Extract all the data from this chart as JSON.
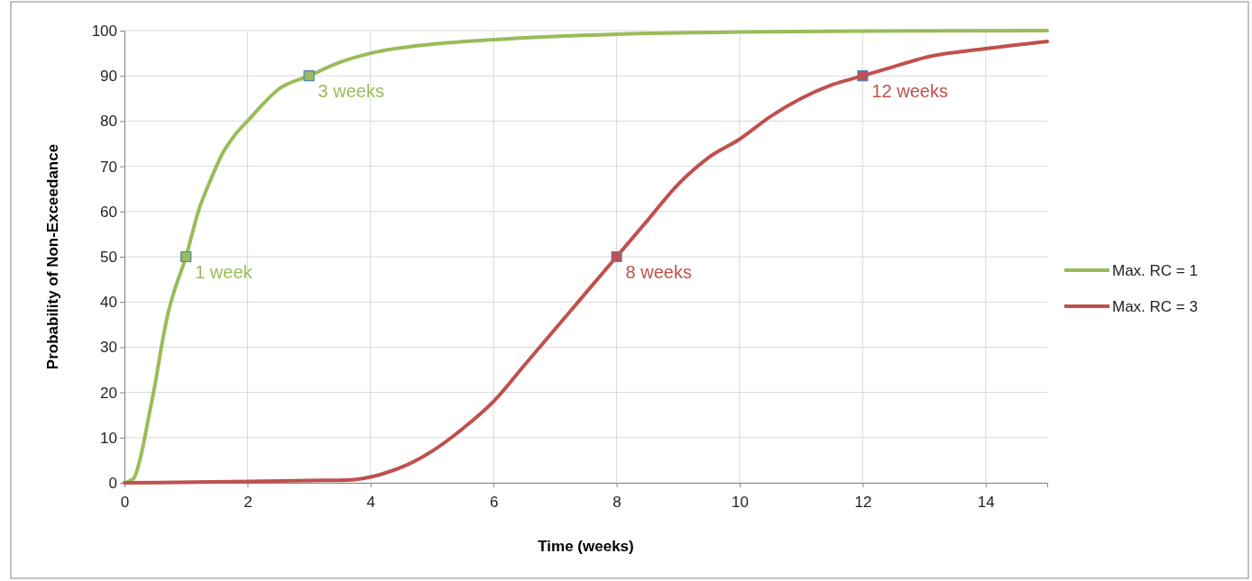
{
  "chart_data": {
    "type": "line",
    "xlabel": "Time (weeks)",
    "ylabel": "Probability of Non-Exceedance",
    "xlim": [
      0,
      15
    ],
    "xticks": [
      0,
      2,
      4,
      6,
      8,
      10,
      12,
      14
    ],
    "ylim": [
      0,
      100
    ],
    "yticks": [
      0,
      10,
      20,
      30,
      40,
      50,
      60,
      70,
      80,
      90,
      100
    ],
    "grid": true,
    "legend": "right",
    "line_style": "solid",
    "series": [
      {
        "name": "Max. RC = 1",
        "color": "#9bbb59",
        "x": [
          0,
          0.15,
          0.25,
          0.4,
          0.5,
          0.6,
          0.7,
          0.8,
          1,
          1.2,
          1.4,
          1.6,
          1.8,
          2,
          2.2,
          2.5,
          3,
          3.5,
          4,
          5,
          6,
          8,
          10,
          12,
          15
        ],
        "values": [
          0,
          1,
          5,
          15,
          22,
          30,
          37,
          42,
          50,
          60,
          67,
          73,
          77,
          80,
          83,
          87,
          90,
          93,
          95,
          97,
          98,
          99.2,
          99.7,
          99.9,
          100
        ]
      },
      {
        "name": "Max. RC = 3",
        "color": "#c0504d",
        "x": [
          0,
          2,
          3,
          3.6,
          4,
          4.2,
          4.6,
          5,
          5.5,
          6,
          6.5,
          7,
          7.5,
          8,
          8.5,
          9,
          9.5,
          10,
          10.5,
          11,
          11.5,
          12,
          12.5,
          13,
          14,
          15
        ],
        "values": [
          0,
          0.3,
          0.5,
          0.6,
          1.3,
          2,
          4,
          7,
          12,
          18,
          26,
          34,
          42,
          50,
          58,
          66,
          72,
          76,
          81,
          85,
          88,
          90,
          92,
          94,
          96,
          97.6
        ]
      },
      {
        "type": "scatter",
        "marker": "square",
        "color": "#9bbb59",
        "x": [
          1,
          3
        ],
        "values": [
          50,
          90
        ]
      },
      {
        "type": "scatter",
        "marker": "square",
        "color": "#c0504d",
        "x": [
          8,
          12
        ],
        "values": [
          50,
          90
        ]
      }
    ],
    "annotations": [
      {
        "text": "1 week",
        "x": 1,
        "y": 50
      },
      {
        "text": "3 weeks",
        "x": 3,
        "y": 90
      },
      {
        "text": "8 weeks",
        "x": 8,
        "y": 50
      },
      {
        "text": "12 weeks",
        "x": 12,
        "y": 90
      }
    ]
  }
}
